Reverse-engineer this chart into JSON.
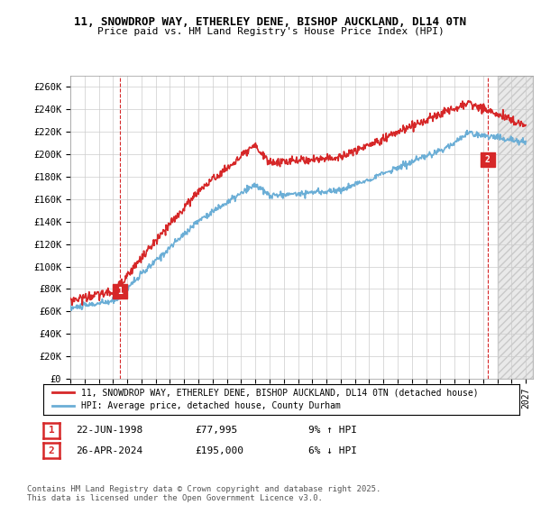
{
  "title1": "11, SNOWDROP WAY, ETHERLEY DENE, BISHOP AUCKLAND, DL14 0TN",
  "title2": "Price paid vs. HM Land Registry's House Price Index (HPI)",
  "ylabel_ticks": [
    "£0",
    "£20K",
    "£40K",
    "£60K",
    "£80K",
    "£100K",
    "£120K",
    "£140K",
    "£160K",
    "£180K",
    "£200K",
    "£220K",
    "£240K",
    "£260K"
  ],
  "ytick_values": [
    0,
    20000,
    40000,
    60000,
    80000,
    100000,
    120000,
    140000,
    160000,
    180000,
    200000,
    220000,
    240000,
    260000
  ],
  "ylim": [
    0,
    270000
  ],
  "xlim_start": 1995.0,
  "xlim_end": 2027.5,
  "hpi_color": "#6baed6",
  "price_color": "#d62728",
  "marker1_date": 1998.47,
  "marker1_price": 77995,
  "marker2_date": 2024.32,
  "marker2_price": 195000,
  "annotation1": [
    "1",
    "22-JUN-1998",
    "£77,995",
    "9% ↑ HPI"
  ],
  "annotation2": [
    "2",
    "26-APR-2024",
    "£195,000",
    "6% ↓ HPI"
  ],
  "legend_label1": "11, SNOWDROP WAY, ETHERLEY DENE, BISHOP AUCKLAND, DL14 0TN (detached house)",
  "legend_label2": "HPI: Average price, detached house, County Durham",
  "footer": "Contains HM Land Registry data © Crown copyright and database right 2025.\nThis data is licensed under the Open Government Licence v3.0.",
  "bg_color": "#ffffff",
  "grid_color": "#cccccc",
  "hatch_color": "#d0d0d0",
  "xticks_start": 1995,
  "xticks_end": 2027
}
